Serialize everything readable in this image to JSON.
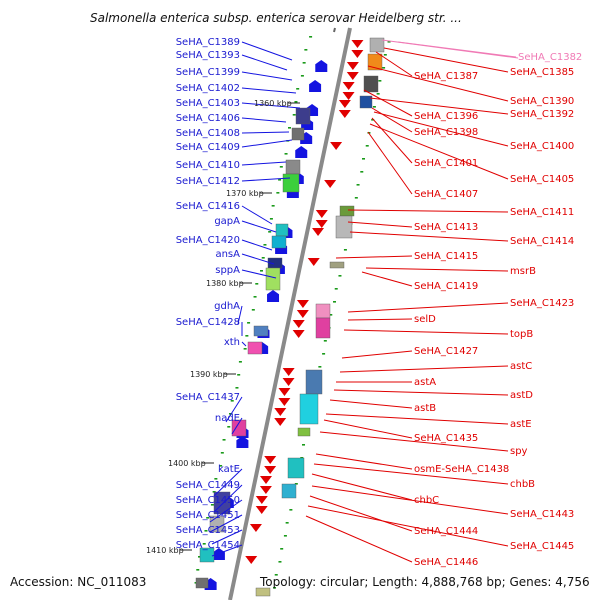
{
  "title": "Salmonella enterica subsp. enterica serovar Heidelberg str. ...",
  "footer": {
    "accession": "Accession: NC_011083",
    "topology": "Topology: circular; Length: 4,888,768 bp; Genes: 4,756"
  },
  "colors": {
    "left_strand": "#1414e0",
    "right_strand": "#e00000",
    "highlight": "#f07ab5",
    "axis": "#888888",
    "tick": "#1a9a1a"
  },
  "scale_labels": [
    "1360 kbp",
    "1370 kbp",
    "1380 kbp",
    "1390 kbp",
    "1400 kbp",
    "1410 kbp"
  ],
  "left_genes": [
    "SeHA_C1389",
    "SeHA_C1393",
    "SeHA_C1399",
    "SeHA_C1402",
    "SeHA_C1403",
    "SeHA_C1406",
    "SeHA_C1408",
    "SeHA_C1409",
    "SeHA_C1410",
    "SeHA_C1412",
    "SeHA_C1416",
    "gapA",
    "SeHA_C1420",
    "ansA",
    "sppA",
    "gdhA",
    "SeHA_C1428",
    "xth",
    "SeHA_C1437",
    "nadE",
    "katE",
    "SeHA_C1449",
    "SeHA_C1450",
    "SeHA_C1451",
    "SeHA_C1453",
    "SeHA_C1454"
  ],
  "right_genes": [
    "SeHA_C1382",
    "SeHA_C1385",
    "SeHA_C1387",
    "SeHA_C1390",
    "SeHA_C1396",
    "SeHA_C1392",
    "SeHA_C1398",
    "SeHA_C1400",
    "SeHA_C1401",
    "SeHA_C1405",
    "SeHA_C1407",
    "SeHA_C1411",
    "SeHA_C1413",
    "SeHA_C1414",
    "SeHA_C1415",
    "msrB",
    "SeHA_C1419",
    "SeHA_C1423",
    "selD",
    "topB",
    "SeHA_C1427",
    "astC",
    "astA",
    "astD",
    "astB",
    "astE",
    "SeHA_C1435",
    "spy",
    "osmE-SeHA_C1438",
    "chbB",
    "chbC",
    "SeHA_C1443",
    "SeHA_C1444",
    "SeHA_C1445",
    "SeHA_C1446"
  ]
}
